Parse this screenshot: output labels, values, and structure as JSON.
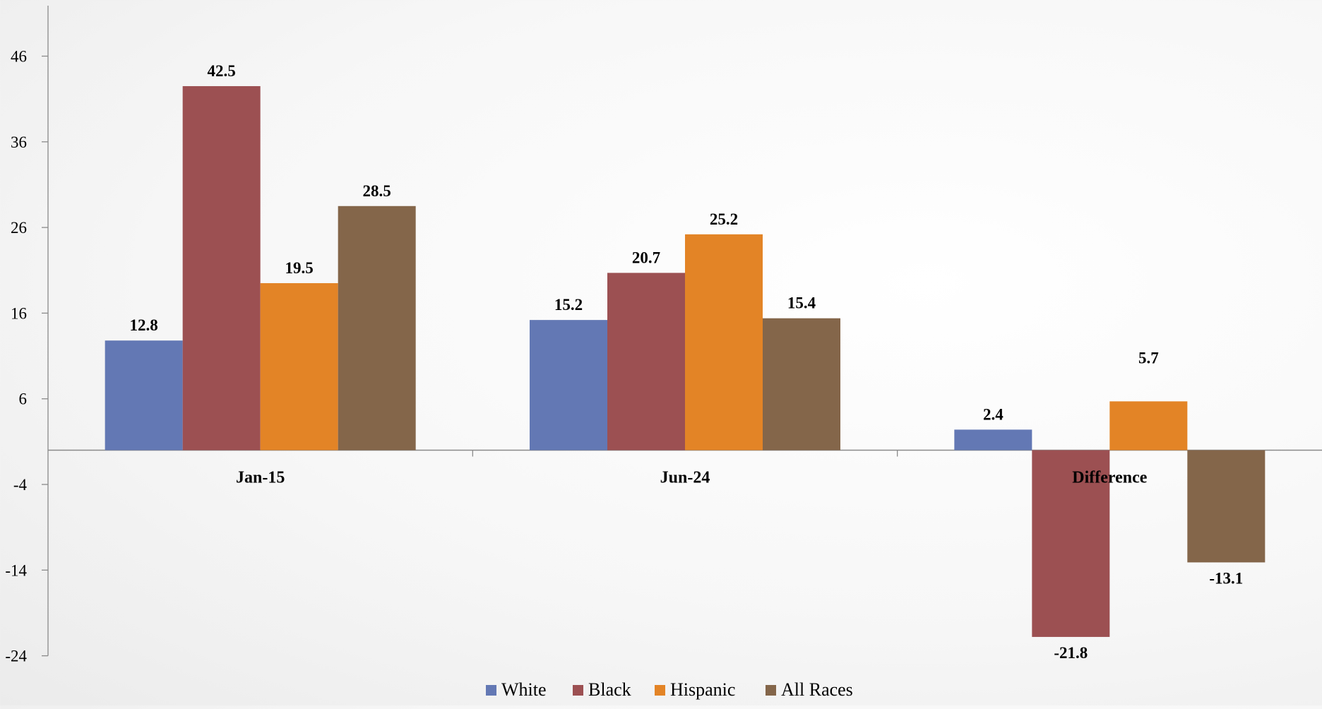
{
  "chart_data": {
    "type": "bar",
    "categories": [
      "Jan-15",
      "Jun-24",
      "Difference"
    ],
    "series": [
      {
        "name": "White",
        "values": [
          12.8,
          15.2,
          2.4
        ],
        "color": "#6378B4"
      },
      {
        "name": "Black",
        "values": [
          42.5,
          20.7,
          -21.8
        ],
        "color": "#9C5052"
      },
      {
        "name": "Hispanic",
        "values": [
          19.5,
          25.2,
          5.7
        ],
        "color": "#E38426"
      },
      {
        "name": "All Races",
        "values": [
          28.5,
          15.4,
          -13.1
        ],
        "color": "#84664A"
      }
    ],
    "data_labels": [
      [
        "12.8",
        "15.2",
        "2.4"
      ],
      [
        "42.5",
        "20.7",
        "-21.8"
      ],
      [
        "19.5",
        "25.2",
        "5.7"
      ],
      [
        "28.5",
        "15.4",
        "-13.1"
      ]
    ],
    "yticks": [
      46,
      36,
      26,
      16,
      6,
      -4,
      -14,
      -24
    ],
    "ytick_labels": [
      "46",
      "36",
      "26",
      "16",
      "6",
      "-4",
      "-14",
      "-24"
    ],
    "ylim": [
      -24,
      52
    ],
    "xlabel": "",
    "ylabel": "",
    "title": "",
    "grid": false,
    "legend_position": "bottom",
    "axis_color": "#8A8A8A"
  }
}
